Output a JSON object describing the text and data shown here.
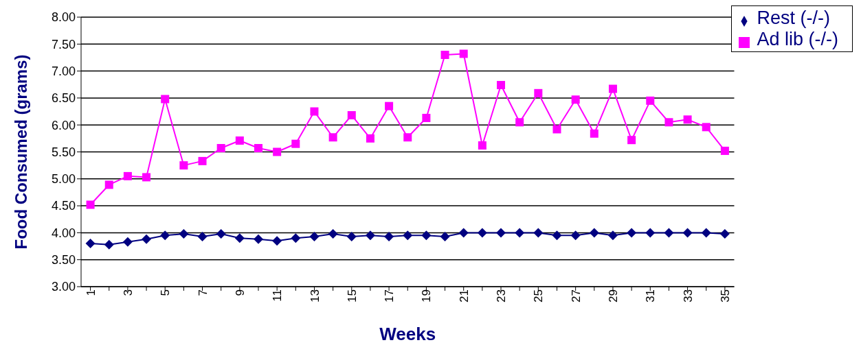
{
  "chart_data": {
    "type": "line",
    "xlabel": "Weeks",
    "ylabel": "Food Consumed (grams)",
    "categories": [
      "1",
      null,
      "3",
      null,
      "5",
      null,
      "7",
      null,
      "9",
      null,
      "11",
      null,
      "13",
      null,
      "15",
      null,
      "17",
      null,
      "19",
      null,
      "21",
      null,
      "23",
      null,
      "25",
      null,
      "27",
      null,
      "29",
      null,
      "31",
      null,
      "33",
      null,
      "35"
    ],
    "series": [
      {
        "name": "Rest (-/-)",
        "color": "#000080",
        "marker": "diamond",
        "values": [
          3.8,
          3.78,
          3.83,
          3.88,
          3.95,
          3.98,
          3.93,
          3.98,
          3.9,
          3.88,
          3.85,
          3.9,
          3.93,
          3.98,
          3.93,
          3.95,
          3.93,
          3.95,
          3.95,
          3.93,
          4.0,
          4.0,
          4.0,
          4.0,
          4.0,
          3.95,
          3.95,
          4.0,
          3.95,
          4.0,
          4.0,
          4.0,
          4.0,
          4.0,
          3.98
        ]
      },
      {
        "name": "Ad lib (-/-)",
        "color": "#ff00ff",
        "marker": "square",
        "values": [
          4.52,
          4.89,
          5.05,
          5.03,
          6.48,
          5.25,
          5.33,
          5.57,
          5.71,
          5.57,
          5.5,
          5.65,
          6.25,
          5.77,
          6.18,
          5.75,
          6.35,
          5.77,
          6.13,
          7.3,
          7.32,
          5.62,
          6.74,
          6.05,
          6.59,
          5.92,
          6.47,
          5.84,
          6.67,
          5.72,
          6.45,
          6.05,
          6.1,
          5.96,
          5.52
        ]
      }
    ],
    "ylim": [
      3,
      8
    ],
    "yticks": [
      {
        "value": 3,
        "label": "3.00"
      },
      {
        "value": 3.5,
        "label": "3.50"
      },
      {
        "value": 4,
        "label": "4.00"
      },
      {
        "value": 4.5,
        "label": "4.50"
      },
      {
        "value": 5,
        "label": "5.00"
      },
      {
        "value": 5.5,
        "label": "5.50"
      },
      {
        "value": 6,
        "label": "6.00"
      },
      {
        "value": 6.5,
        "label": "6.50"
      },
      {
        "value": 7,
        "label": "7.00"
      },
      {
        "value": 7.5,
        "label": "7.50"
      },
      {
        "value": 8,
        "label": "8.00"
      }
    ],
    "grid": "y",
    "legend": "top right",
    "line_style": "solid"
  }
}
